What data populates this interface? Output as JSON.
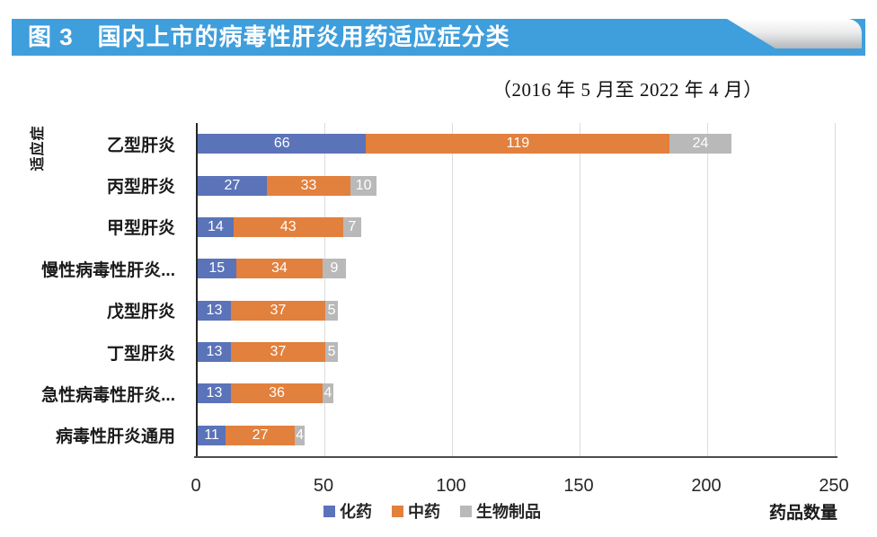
{
  "header": {
    "title": "图 3　国内上市的病毒性肝炎用药适应症分类",
    "bar_color": "#3f9edc"
  },
  "subtitle": "（2016 年 5 月至 2022 年 4 月）",
  "chart_data": {
    "type": "bar",
    "orientation": "horizontal",
    "stacked": true,
    "title": "图 3 国内上市的病毒性肝炎用药适应症分类",
    "ylabel": "适应症",
    "xlabel": "药品数量",
    "categories": [
      "乙型肝炎",
      "丙型肝炎",
      "甲型肝炎",
      "慢性病毒性肝炎...",
      "戊型肝炎",
      "丁型肝炎",
      "急性病毒性肝炎...",
      "病毒性肝炎通用"
    ],
    "series": [
      {
        "name": "化药",
        "color": "#5b73b8",
        "values": [
          66,
          27,
          14,
          15,
          13,
          13,
          13,
          11
        ]
      },
      {
        "name": "中药",
        "color": "#e2803d",
        "values": [
          119,
          33,
          43,
          34,
          37,
          37,
          36,
          27
        ]
      },
      {
        "name": "生物制品",
        "color": "#b9b9b9",
        "values": [
          24,
          10,
          7,
          9,
          5,
          5,
          4,
          4
        ]
      }
    ],
    "x_ticks": [
      0,
      50,
      100,
      150,
      200,
      250
    ],
    "xlim": [
      0,
      250
    ],
    "grid": true,
    "legend_position": "bottom",
    "data_label_color": "#ffffff",
    "gridline_color": "#dcdcdc"
  }
}
